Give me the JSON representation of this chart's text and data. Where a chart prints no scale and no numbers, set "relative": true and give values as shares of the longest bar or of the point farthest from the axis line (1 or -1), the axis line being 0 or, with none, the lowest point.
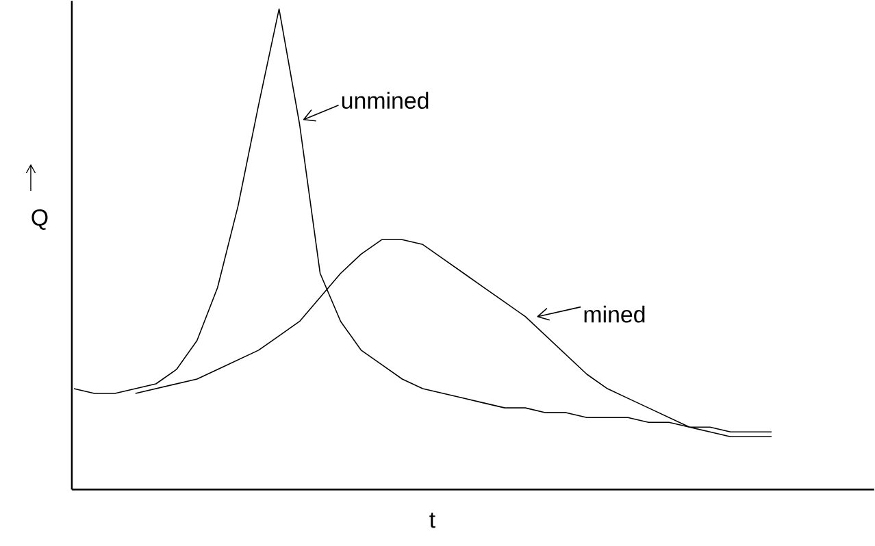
{
  "chart_data": {
    "type": "line",
    "relative": true,
    "legend": "right",
    "xlabel": "t",
    "ylabel": "Q",
    "categories": [
      null,
      null,
      null,
      null,
      null,
      null,
      null,
      null,
      null,
      null,
      null,
      null,
      null,
      null,
      null,
      null,
      null,
      null,
      null,
      null,
      null,
      null,
      null,
      null,
      null,
      null,
      null,
      null,
      null,
      null,
      null,
      null,
      null,
      null,
      null
    ],
    "series": [
      {
        "name": "unmined",
        "color": "#000000",
        "values": [
          0.21,
          0.2,
          0.2,
          0.21,
          0.22,
          0.25,
          0.31,
          0.42,
          0.59,
          0.8,
          1,
          0.76,
          0.45,
          0.35,
          0.29,
          0.26,
          0.23,
          0.21,
          0.2,
          0.19,
          0.18,
          0.17,
          0.17,
          0.16,
          0.16,
          0.15,
          0.15,
          0.15,
          0.14,
          0.14,
          0.13,
          0.13,
          0.12,
          0.12,
          0.12
        ]
      },
      {
        "name": "mined",
        "color": "#000000",
        "values": [
          null,
          null,
          null,
          0.2,
          0.21,
          0.22,
          0.23,
          0.25,
          0.27,
          0.29,
          0.32,
          0.35,
          0.4,
          0.45,
          0.49,
          0.52,
          0.52,
          0.51,
          0.48,
          0.45,
          0.42,
          0.39,
          0.36,
          0.32,
          0.28,
          0.24,
          0.21,
          0.19,
          0.17,
          0.15,
          0.13,
          0.12,
          0.11,
          0.11,
          0.11
        ]
      }
    ]
  }
}
